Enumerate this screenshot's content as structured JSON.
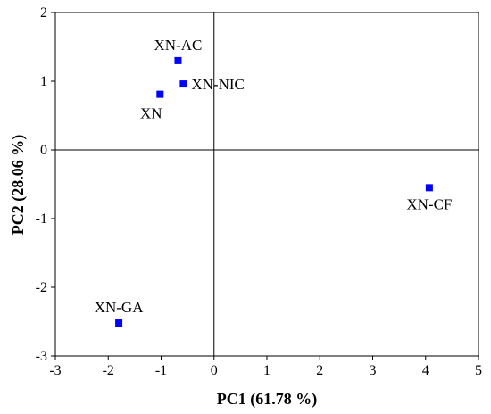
{
  "chart_data": {
    "type": "scatter",
    "title": "",
    "xlabel": "PC1 (61.78 %)",
    "ylabel": "PC2 (28.06 %)",
    "xlim": [
      -3,
      5
    ],
    "ylim": [
      -3,
      2
    ],
    "xticks": [
      -3,
      -2,
      -1,
      0,
      1,
      2,
      3,
      4,
      5
    ],
    "yticks": [
      -3,
      -2,
      -1,
      0,
      1,
      2
    ],
    "reference_lines": {
      "x": 0,
      "y": 0
    },
    "grid": false,
    "marker": {
      "shape": "square",
      "color": "#0000ff"
    },
    "points": [
      {
        "label": "XN-AC",
        "x": -0.68,
        "y": 1.3,
        "label_side": "above"
      },
      {
        "label": "XN-NIC",
        "x": -0.58,
        "y": 0.96,
        "label_side": "right"
      },
      {
        "label": "XN",
        "x": -1.02,
        "y": 0.81,
        "label_side": "below-left"
      },
      {
        "label": "XN-CF",
        "x": 4.07,
        "y": -0.55,
        "label_side": "below"
      },
      {
        "label": "XN-GA",
        "x": -1.8,
        "y": -2.52,
        "label_side": "above"
      }
    ]
  }
}
